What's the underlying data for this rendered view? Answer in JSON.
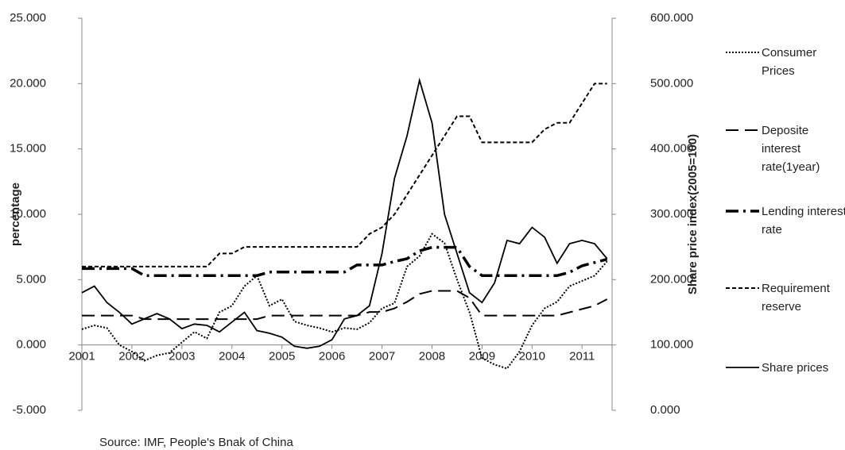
{
  "chart_data": {
    "type": "line",
    "x": [
      2001,
      2001.25,
      2001.5,
      2001.75,
      2002,
      2002.25,
      2002.5,
      2002.75,
      2003,
      2003.25,
      2003.5,
      2003.75,
      2004,
      2004.25,
      2004.5,
      2004.75,
      2005,
      2005.25,
      2005.5,
      2005.75,
      2006,
      2006.25,
      2006.5,
      2006.75,
      2007,
      2007.25,
      2007.5,
      2007.75,
      2008,
      2008.25,
      2008.5,
      2008.75,
      2009,
      2009.25,
      2009.5,
      2009.75,
      2010,
      2010.25,
      2010.5,
      2010.75,
      2011,
      2011.25,
      2011.5
    ],
    "series": [
      {
        "name": "Consumer Prices",
        "color": "#000000",
        "values": [
          1.2,
          1.5,
          1.3,
          0.0,
          -0.5,
          -1.2,
          -0.8,
          -0.6,
          0.2,
          1.0,
          0.5,
          2.5,
          3.0,
          4.5,
          5.3,
          3.0,
          3.5,
          1.8,
          1.5,
          1.3,
          1.0,
          1.3,
          1.2,
          1.7,
          2.8,
          3.2,
          6.0,
          6.8,
          8.5,
          7.8,
          5.0,
          2.5,
          -1.0,
          -1.5,
          -1.8,
          -0.5,
          1.5,
          2.8,
          3.3,
          4.5,
          4.9,
          5.3,
          6.4
        ]
      },
      {
        "name": "Deposite interest rate(1year)",
        "color": "#000000",
        "values": [
          2.25,
          2.25,
          2.25,
          2.25,
          2.25,
          1.98,
          1.98,
          1.98,
          1.98,
          1.98,
          1.98,
          1.98,
          1.98,
          1.98,
          1.98,
          2.25,
          2.25,
          2.25,
          2.25,
          2.25,
          2.25,
          2.25,
          2.25,
          2.52,
          2.52,
          2.8,
          3.3,
          3.9,
          4.14,
          4.14,
          4.14,
          3.6,
          2.25,
          2.25,
          2.25,
          2.25,
          2.25,
          2.25,
          2.25,
          2.5,
          2.75,
          3.0,
          3.5
        ]
      },
      {
        "name": "Lending interest rate",
        "color": "#000000",
        "values": [
          5.85,
          5.85,
          5.85,
          5.85,
          5.85,
          5.31,
          5.31,
          5.31,
          5.31,
          5.31,
          5.31,
          5.31,
          5.31,
          5.31,
          5.31,
          5.58,
          5.58,
          5.58,
          5.58,
          5.58,
          5.58,
          5.58,
          6.12,
          6.12,
          6.12,
          6.39,
          6.6,
          7.2,
          7.47,
          7.47,
          7.47,
          6.0,
          5.31,
          5.31,
          5.31,
          5.31,
          5.31,
          5.31,
          5.31,
          5.56,
          6.06,
          6.31,
          6.56
        ]
      },
      {
        "name": "Requirement reserve",
        "color": "#000000",
        "values": [
          6,
          6,
          6,
          6,
          6,
          6,
          6,
          6,
          6,
          6,
          6,
          7,
          7,
          7.5,
          7.5,
          7.5,
          7.5,
          7.5,
          7.5,
          7.5,
          7.5,
          7.5,
          7.5,
          8.5,
          9,
          10,
          11.5,
          13,
          14.5,
          16,
          17.5,
          17.5,
          15.5,
          15.5,
          15.5,
          15.5,
          15.5,
          16.5,
          17,
          17,
          18.5,
          20,
          20
        ]
      },
      {
        "name": "Share prices",
        "color": "#000000",
        "axis": "y2",
        "values": [
          180,
          190,
          165,
          150,
          132,
          140,
          148,
          140,
          125,
          132,
          130,
          120,
          135,
          150,
          122,
          118,
          112,
          98,
          95,
          98,
          108,
          140,
          145,
          160,
          240,
          355,
          420,
          505,
          440,
          300,
          240,
          180,
          165,
          195,
          260,
          255,
          280,
          265,
          225,
          255,
          260,
          255,
          232
        ]
      }
    ],
    "xlim": [
      2001,
      2011.6
    ],
    "xticks": [
      2001,
      2002,
      2003,
      2004,
      2005,
      2006,
      2007,
      2008,
      2009,
      2010,
      2011
    ],
    "ylim": [
      -5,
      25
    ],
    "yticks": [
      {
        "value": -5,
        "label": "-5.000"
      },
      {
        "value": 0,
        "label": "0.000"
      },
      {
        "value": 5,
        "label": "5.000"
      },
      {
        "value": 10,
        "label": "10.000"
      },
      {
        "value": 15,
        "label": "15.000"
      },
      {
        "value": 20,
        "label": "20.000"
      },
      {
        "value": 25,
        "label": "25.000"
      }
    ],
    "y2lim": [
      0,
      600
    ],
    "y2ticks": [
      {
        "value": 0,
        "label": "0.000"
      },
      {
        "value": 100,
        "label": "100.000"
      },
      {
        "value": 200,
        "label": "200.000"
      },
      {
        "value": 300,
        "label": "300.000"
      },
      {
        "value": 400,
        "label": "400.000"
      },
      {
        "value": 500,
        "label": "500.000"
      },
      {
        "value": 600,
        "label": "600.000"
      }
    ],
    "ylabel": "percentage",
    "y2label": "Share price index(2005=100)",
    "source": "Source: IMF, People's Bnak of China",
    "legend": "right",
    "grid": false
  }
}
